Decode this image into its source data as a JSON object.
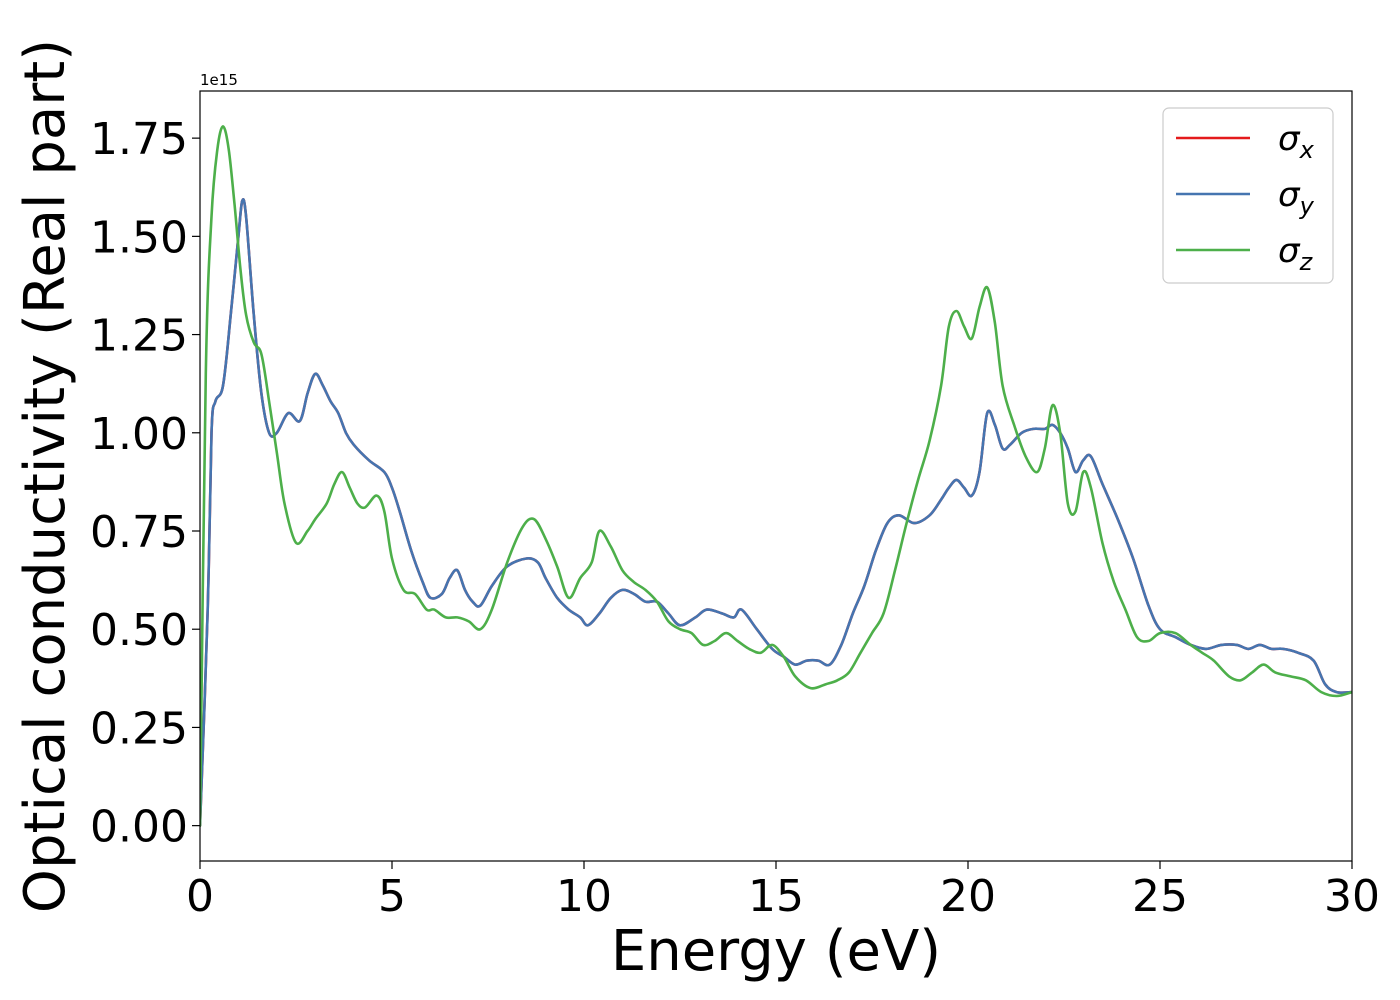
{
  "chart_data": {
    "type": "line",
    "xlabel": "Energy (eV)",
    "ylabel": "Optical conductivity (Real part)",
    "offset_text": "1e15",
    "xlim": [
      0,
      30
    ],
    "ylim": [
      -0.09,
      1.87
    ],
    "x_ticks": [
      0,
      5,
      10,
      15,
      20,
      25,
      30
    ],
    "x_tick_labels": [
      "0",
      "5",
      "10",
      "15",
      "20",
      "25",
      "30"
    ],
    "y_ticks": [
      0.0,
      0.25,
      0.5,
      0.75,
      1.0,
      1.25,
      1.5,
      1.75
    ],
    "y_tick_labels": [
      "0.00",
      "0.25",
      "0.50",
      "0.75",
      "1.00",
      "1.25",
      "1.50",
      "1.75"
    ],
    "grid": false,
    "legend_position": "top-right",
    "series": [
      {
        "name": "σx",
        "symbol": "σ",
        "subscript": "x",
        "color": "#e41a1c",
        "x": [
          0,
          0.2,
          0.3,
          0.4,
          0.6,
          0.8,
          1.0,
          1.1,
          1.2,
          1.4,
          1.6,
          1.8,
          2.0,
          2.3,
          2.6,
          2.8,
          3.0,
          3.2,
          3.4,
          3.6,
          3.8,
          4.0,
          4.4,
          4.8,
          5.0,
          5.2,
          5.5,
          5.8,
          6.0,
          6.3,
          6.5,
          6.7,
          6.9,
          7.1,
          7.3,
          7.6,
          8.0,
          8.5,
          8.8,
          9.0,
          9.3,
          9.6,
          9.9,
          10.1,
          10.4,
          10.7,
          11.0,
          11.3,
          11.6,
          11.9,
          12.2,
          12.5,
          12.9,
          13.2,
          13.6,
          13.9,
          14.1,
          14.5,
          14.9,
          15.2,
          15.5,
          15.8,
          16.1,
          16.4,
          16.7,
          17.0,
          17.3,
          17.6,
          17.9,
          18.2,
          18.6,
          19.0,
          19.3,
          19.5,
          19.7,
          19.9,
          20.1,
          20.3,
          20.5,
          20.7,
          20.9,
          21.1,
          21.4,
          21.7,
          22.0,
          22.2,
          22.4,
          22.6,
          22.8,
          23.0,
          23.2,
          23.5,
          23.9,
          24.3,
          24.7,
          25.0,
          25.4,
          25.8,
          26.2,
          26.6,
          27.0,
          27.3,
          27.6,
          27.9,
          28.2,
          28.6,
          29.0,
          29.3,
          29.6,
          30.0
        ],
        "y": [
          0.0,
          0.55,
          1.0,
          1.08,
          1.12,
          1.3,
          1.5,
          1.59,
          1.55,
          1.3,
          1.1,
          1.0,
          1.0,
          1.05,
          1.03,
          1.1,
          1.15,
          1.12,
          1.08,
          1.05,
          1.0,
          0.97,
          0.93,
          0.9,
          0.86,
          0.8,
          0.7,
          0.62,
          0.58,
          0.59,
          0.63,
          0.65,
          0.6,
          0.57,
          0.56,
          0.61,
          0.66,
          0.68,
          0.67,
          0.63,
          0.58,
          0.55,
          0.53,
          0.51,
          0.54,
          0.58,
          0.6,
          0.59,
          0.57,
          0.57,
          0.54,
          0.51,
          0.53,
          0.55,
          0.54,
          0.53,
          0.55,
          0.5,
          0.45,
          0.43,
          0.41,
          0.42,
          0.42,
          0.41,
          0.46,
          0.54,
          0.61,
          0.7,
          0.77,
          0.79,
          0.77,
          0.79,
          0.83,
          0.86,
          0.88,
          0.86,
          0.84,
          0.9,
          1.05,
          1.02,
          0.96,
          0.97,
          1.0,
          1.01,
          1.01,
          1.02,
          1.0,
          0.96,
          0.9,
          0.93,
          0.94,
          0.87,
          0.78,
          0.68,
          0.56,
          0.5,
          0.48,
          0.46,
          0.45,
          0.46,
          0.46,
          0.45,
          0.46,
          0.45,
          0.45,
          0.44,
          0.42,
          0.36,
          0.34,
          0.34
        ]
      },
      {
        "name": "σy",
        "symbol": "σ",
        "subscript": "y",
        "color": "#4575b0",
        "x": [
          0,
          0.2,
          0.3,
          0.4,
          0.6,
          0.8,
          1.0,
          1.1,
          1.2,
          1.4,
          1.6,
          1.8,
          2.0,
          2.3,
          2.6,
          2.8,
          3.0,
          3.2,
          3.4,
          3.6,
          3.8,
          4.0,
          4.4,
          4.8,
          5.0,
          5.2,
          5.5,
          5.8,
          6.0,
          6.3,
          6.5,
          6.7,
          6.9,
          7.1,
          7.3,
          7.6,
          8.0,
          8.5,
          8.8,
          9.0,
          9.3,
          9.6,
          9.9,
          10.1,
          10.4,
          10.7,
          11.0,
          11.3,
          11.6,
          11.9,
          12.2,
          12.5,
          12.9,
          13.2,
          13.6,
          13.9,
          14.1,
          14.5,
          14.9,
          15.2,
          15.5,
          15.8,
          16.1,
          16.4,
          16.7,
          17.0,
          17.3,
          17.6,
          17.9,
          18.2,
          18.6,
          19.0,
          19.3,
          19.5,
          19.7,
          19.9,
          20.1,
          20.3,
          20.5,
          20.7,
          20.9,
          21.1,
          21.4,
          21.7,
          22.0,
          22.2,
          22.4,
          22.6,
          22.8,
          23.0,
          23.2,
          23.5,
          23.9,
          24.3,
          24.7,
          25.0,
          25.4,
          25.8,
          26.2,
          26.6,
          27.0,
          27.3,
          27.6,
          27.9,
          28.2,
          28.6,
          29.0,
          29.3,
          29.6,
          30.0
        ],
        "y": [
          0.0,
          0.55,
          1.0,
          1.08,
          1.12,
          1.3,
          1.5,
          1.59,
          1.55,
          1.3,
          1.1,
          1.0,
          1.0,
          1.05,
          1.03,
          1.1,
          1.15,
          1.12,
          1.08,
          1.05,
          1.0,
          0.97,
          0.93,
          0.9,
          0.86,
          0.8,
          0.7,
          0.62,
          0.58,
          0.59,
          0.63,
          0.65,
          0.6,
          0.57,
          0.56,
          0.61,
          0.66,
          0.68,
          0.67,
          0.63,
          0.58,
          0.55,
          0.53,
          0.51,
          0.54,
          0.58,
          0.6,
          0.59,
          0.57,
          0.57,
          0.54,
          0.51,
          0.53,
          0.55,
          0.54,
          0.53,
          0.55,
          0.5,
          0.45,
          0.43,
          0.41,
          0.42,
          0.42,
          0.41,
          0.46,
          0.54,
          0.61,
          0.7,
          0.77,
          0.79,
          0.77,
          0.79,
          0.83,
          0.86,
          0.88,
          0.86,
          0.84,
          0.9,
          1.05,
          1.02,
          0.96,
          0.97,
          1.0,
          1.01,
          1.01,
          1.02,
          1.0,
          0.96,
          0.9,
          0.93,
          0.94,
          0.87,
          0.78,
          0.68,
          0.56,
          0.5,
          0.48,
          0.46,
          0.45,
          0.46,
          0.46,
          0.45,
          0.46,
          0.45,
          0.45,
          0.44,
          0.42,
          0.36,
          0.34,
          0.34
        ]
      },
      {
        "name": "σz",
        "symbol": "σ",
        "subscript": "z",
        "color": "#4daf4a",
        "x": [
          0,
          0.15,
          0.3,
          0.45,
          0.6,
          0.75,
          0.9,
          1.05,
          1.2,
          1.4,
          1.6,
          1.8,
          2.0,
          2.2,
          2.5,
          2.8,
          3.0,
          3.3,
          3.5,
          3.7,
          3.9,
          4.1,
          4.3,
          4.6,
          4.8,
          5.0,
          5.3,
          5.6,
          5.9,
          6.1,
          6.4,
          6.7,
          7.0,
          7.3,
          7.6,
          8.0,
          8.4,
          8.7,
          9.0,
          9.3,
          9.6,
          9.9,
          10.2,
          10.4,
          10.7,
          11.0,
          11.3,
          11.6,
          11.9,
          12.2,
          12.5,
          12.8,
          13.1,
          13.4,
          13.7,
          14.0,
          14.3,
          14.6,
          14.9,
          15.2,
          15.5,
          15.9,
          16.3,
          16.6,
          16.9,
          17.2,
          17.5,
          17.8,
          18.1,
          18.4,
          18.7,
          19.0,
          19.3,
          19.5,
          19.7,
          19.9,
          20.1,
          20.3,
          20.5,
          20.7,
          20.9,
          21.2,
          21.5,
          21.8,
          22.0,
          22.2,
          22.4,
          22.6,
          22.8,
          23.0,
          23.2,
          23.5,
          23.8,
          24.1,
          24.4,
          24.7,
          25.0,
          25.4,
          25.8,
          26.1,
          26.4,
          26.8,
          27.1,
          27.4,
          27.7,
          28.0,
          28.4,
          28.8,
          29.2,
          29.6,
          30.0
        ],
        "y": [
          0.0,
          1.15,
          1.55,
          1.72,
          1.78,
          1.72,
          1.58,
          1.42,
          1.3,
          1.23,
          1.2,
          1.08,
          0.95,
          0.82,
          0.72,
          0.75,
          0.78,
          0.82,
          0.87,
          0.9,
          0.86,
          0.82,
          0.81,
          0.84,
          0.8,
          0.68,
          0.6,
          0.59,
          0.55,
          0.55,
          0.53,
          0.53,
          0.52,
          0.5,
          0.55,
          0.67,
          0.76,
          0.78,
          0.73,
          0.66,
          0.58,
          0.63,
          0.67,
          0.75,
          0.71,
          0.65,
          0.62,
          0.6,
          0.57,
          0.52,
          0.5,
          0.49,
          0.46,
          0.47,
          0.49,
          0.47,
          0.45,
          0.44,
          0.46,
          0.43,
          0.38,
          0.35,
          0.36,
          0.37,
          0.39,
          0.44,
          0.49,
          0.54,
          0.65,
          0.77,
          0.88,
          0.98,
          1.12,
          1.27,
          1.31,
          1.27,
          1.24,
          1.32,
          1.37,
          1.28,
          1.12,
          1.02,
          0.94,
          0.9,
          0.96,
          1.07,
          1.0,
          0.82,
          0.8,
          0.9,
          0.86,
          0.72,
          0.62,
          0.55,
          0.48,
          0.47,
          0.49,
          0.49,
          0.46,
          0.44,
          0.42,
          0.38,
          0.37,
          0.39,
          0.41,
          0.39,
          0.38,
          0.37,
          0.34,
          0.33,
          0.34
        ]
      }
    ]
  }
}
